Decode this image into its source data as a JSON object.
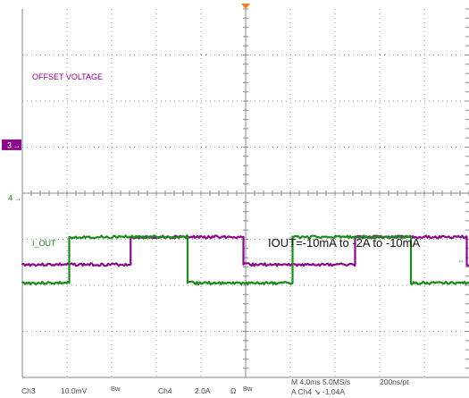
{
  "chart_data": {
    "type": "line",
    "title": "",
    "xlabel": "",
    "ylabel": "",
    "grid": true,
    "x_unit": "ms",
    "xlim": [
      0,
      40
    ],
    "series": [
      {
        "name": "OFFSET VOLTAGE",
        "channel": "Ch3",
        "color": "#8b0a8b",
        "x": [
          0,
          9.7,
          9.7,
          19.8,
          19.8,
          29.8,
          29.8,
          39.8,
          39.8,
          40
        ],
        "y_div": [
          -1.55,
          -1.55,
          -0.95,
          -0.95,
          -1.55,
          -1.55,
          -0.95,
          -0.95,
          -1.55,
          -1.55
        ]
      },
      {
        "name": "I_OUT",
        "channel": "Ch4",
        "color": "#1c8a1c",
        "x": [
          0,
          4.2,
          4.2,
          14.8,
          14.8,
          24.2,
          24.2,
          34.8,
          34.8,
          40
        ],
        "y_div": [
          -1.95,
          -1.95,
          -0.95,
          -0.95,
          -1.95,
          -1.95,
          -0.95,
          -0.95,
          -1.95,
          -1.95
        ]
      }
    ],
    "annotations": {
      "ch3_label": "OFFSET VOLTAGE",
      "ch4_label": "I_OUT",
      "note": "IOUT=-10mA to -2A to -10mA",
      "marker3": "3",
      "marker4": "4"
    },
    "status_bar": {
      "ch3_name": "Ch3",
      "ch3_scale": "10.0mV",
      "ch3_bw": "Bw",
      "ch4_name": "Ch4",
      "ch4_scale": "2.0A",
      "ch4_ohm": "Ω",
      "ch4_bw": "Bw",
      "timebase": "M 4.0ms 5.0MS/s",
      "resolution": "200ns/pt",
      "trigger": "A  Ch4  ↘  -1.04A"
    }
  }
}
